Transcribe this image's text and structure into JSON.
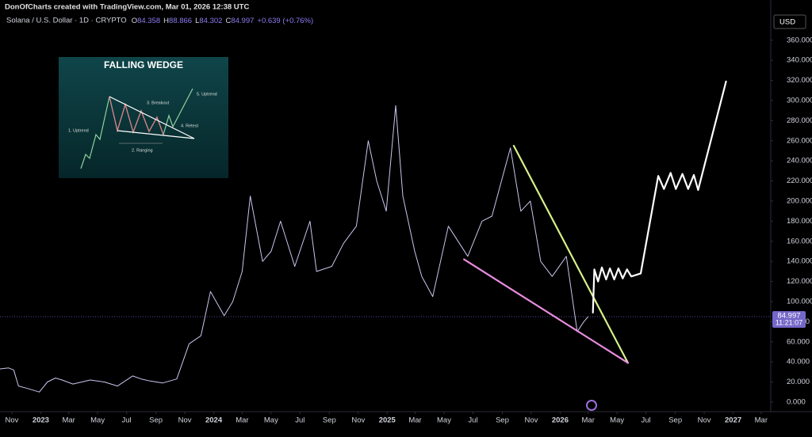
{
  "header": {
    "attribution": "DonOfCharts created with TradingView.com, Mar 01, 2026 12:38 UTC"
  },
  "chart_data": {
    "type": "line",
    "ohlc": [
      {
        "label": "O",
        "value": 84.358
      },
      {
        "label": "H",
        "value": 88.866
      },
      {
        "label": "L",
        "value": 84.302
      },
      {
        "label": "C",
        "value": 84.997
      }
    ],
    "change": "+0.639 (+0.76%)",
    "currency": "USD",
    "last_price": 84.997,
    "countdown": "11:21:07",
    "xlim": [
      "2022-10-07",
      "2027-03-18"
    ],
    "ylim": [
      -9.5,
      400
    ],
    "grid": false,
    "xticks": [
      {
        "value": "2022-11-01",
        "label": "Nov"
      },
      {
        "value": "2023-01-01",
        "label": "2023"
      },
      {
        "value": "2023-03-01",
        "label": "Mar"
      },
      {
        "value": "2023-05-01",
        "label": "May"
      },
      {
        "value": "2023-07-01",
        "label": "Jul"
      },
      {
        "value": "2023-09-01",
        "label": "Sep"
      },
      {
        "value": "2023-11-01",
        "label": "Nov"
      },
      {
        "value": "2024-01-01",
        "label": "2024"
      },
      {
        "value": "2024-03-01",
        "label": "Mar"
      },
      {
        "value": "2024-05-01",
        "label": "May"
      },
      {
        "value": "2024-07-01",
        "label": "Jul"
      },
      {
        "value": "2024-09-01",
        "label": "Sep"
      },
      {
        "value": "2024-11-01",
        "label": "Nov"
      },
      {
        "value": "2025-01-01",
        "label": "2025"
      },
      {
        "value": "2025-03-01",
        "label": "Mar"
      },
      {
        "value": "2025-05-01",
        "label": "May"
      },
      {
        "value": "2025-07-01",
        "label": "Jul"
      },
      {
        "value": "2025-09-01",
        "label": "Sep"
      },
      {
        "value": "2025-11-01",
        "label": "Nov"
      },
      {
        "value": "2026-01-01",
        "label": "2026"
      },
      {
        "value": "2026-03-01",
        "label": "Mar"
      },
      {
        "value": "2026-05-01",
        "label": "May"
      },
      {
        "value": "2026-07-01",
        "label": "Jul"
      },
      {
        "value": "2026-09-01",
        "label": "Sep"
      },
      {
        "value": "2026-11-01",
        "label": "Nov"
      },
      {
        "value": "2027-01-01",
        "label": "2027"
      },
      {
        "value": "2027-03-01",
        "label": "Mar"
      }
    ],
    "yticks": [
      {
        "value": 0,
        "label": "0.000"
      },
      {
        "value": 20,
        "label": "20.000"
      },
      {
        "value": 40,
        "label": "40.000"
      },
      {
        "value": 60,
        "label": "60.000"
      },
      {
        "value": 80,
        "label": "80.000"
      },
      {
        "value": 100,
        "label": "100.000"
      },
      {
        "value": 120,
        "label": "120.000"
      },
      {
        "value": 140,
        "label": "140.000"
      },
      {
        "value": 160,
        "label": "160.000"
      },
      {
        "value": 180,
        "label": "180.000"
      },
      {
        "value": 200,
        "label": "200.000"
      },
      {
        "value": 220,
        "label": "220.000"
      },
      {
        "value": 240,
        "label": "240.000"
      },
      {
        "value": 260,
        "label": "260.000"
      },
      {
        "value": 280,
        "label": "280.000"
      },
      {
        "value": 300,
        "label": "300.000"
      },
      {
        "value": 320,
        "label": "320.000"
      },
      {
        "value": 340,
        "label": "340.000"
      },
      {
        "value": 360,
        "label": "360.000"
      }
    ],
    "series": [
      {
        "name": "Solana / U.S. Dollar · 1D · CRYPTO",
        "color": "#c9c6ee",
        "x": [
          "2022-10-07",
          "2022-10-25",
          "2022-11-05",
          "2022-11-15",
          "2022-12-01",
          "2022-12-29",
          "2023-01-15",
          "2023-02-01",
          "2023-02-15",
          "2023-03-10",
          "2023-04-15",
          "2023-05-15",
          "2023-06-12",
          "2023-07-14",
          "2023-08-01",
          "2023-08-20",
          "2023-09-15",
          "2023-10-15",
          "2023-11-10",
          "2023-12-05",
          "2023-12-25",
          "2024-01-23",
          "2024-02-10",
          "2024-03-01",
          "2024-03-18",
          "2024-04-13",
          "2024-05-01",
          "2024-05-21",
          "2024-06-20",
          "2024-07-22",
          "2024-08-05",
          "2024-09-06",
          "2024-10-01",
          "2024-10-28",
          "2024-11-22",
          "2024-12-10",
          "2024-12-30",
          "2025-01-19",
          "2025-02-03",
          "2025-02-28",
          "2025-03-15",
          "2025-04-07",
          "2025-05-10",
          "2025-06-20",
          "2025-07-20",
          "2025-08-10",
          "2025-09-18",
          "2025-10-10",
          "2025-10-30",
          "2025-11-21",
          "2025-12-15",
          "2026-01-14",
          "2026-02-06",
          "2026-02-20",
          "2026-03-01"
        ],
        "values": [
          33,
          34,
          32,
          16,
          14,
          10,
          20,
          24,
          22,
          18,
          22,
          20,
          16,
          26,
          23,
          21,
          19,
          23,
          58,
          66,
          110,
          86,
          100,
          130,
          205,
          140,
          150,
          180,
          135,
          180,
          130,
          135,
          158,
          175,
          260,
          220,
          190,
          295,
          205,
          150,
          125,
          105,
          175,
          145,
          180,
          185,
          253,
          190,
          200,
          140,
          125,
          145,
          70,
          80,
          84.997
        ]
      },
      {
        "color": "#d8f08a",
        "x": [
          "2025-09-25",
          "2026-05-24"
        ],
        "values": [
          255,
          39
        ]
      },
      {
        "color": "#e88de0",
        "x": [
          "2025-06-12",
          "2026-05-24"
        ],
        "values": [
          142,
          39
        ]
      },
      {
        "color": "#ffffff",
        "x": [
          "2026-03-11",
          "2026-03-14",
          "2026-03-22",
          "2026-03-30",
          "2026-04-08",
          "2026-04-16",
          "2026-04-25",
          "2026-05-04",
          "2026-05-13",
          "2026-05-22",
          "2026-05-31",
          "2026-06-20",
          "2026-07-27",
          "2026-08-08",
          "2026-08-22",
          "2026-09-02",
          "2026-09-16",
          "2026-09-28",
          "2026-10-10",
          "2026-10-19",
          "2026-12-17"
        ],
        "values": [
          89,
          132,
          120,
          134,
          122,
          133,
          122,
          133,
          123,
          132,
          125,
          128,
          225,
          212,
          228,
          212,
          227,
          212,
          226,
          211,
          319
        ]
      }
    ],
    "inset": {
      "title": "FALLING WEDGE",
      "labels": [
        "1. Uptrend",
        "2. Ranging",
        "3. Breakout",
        "4. Retest",
        "5. Uptrend"
      ]
    }
  }
}
